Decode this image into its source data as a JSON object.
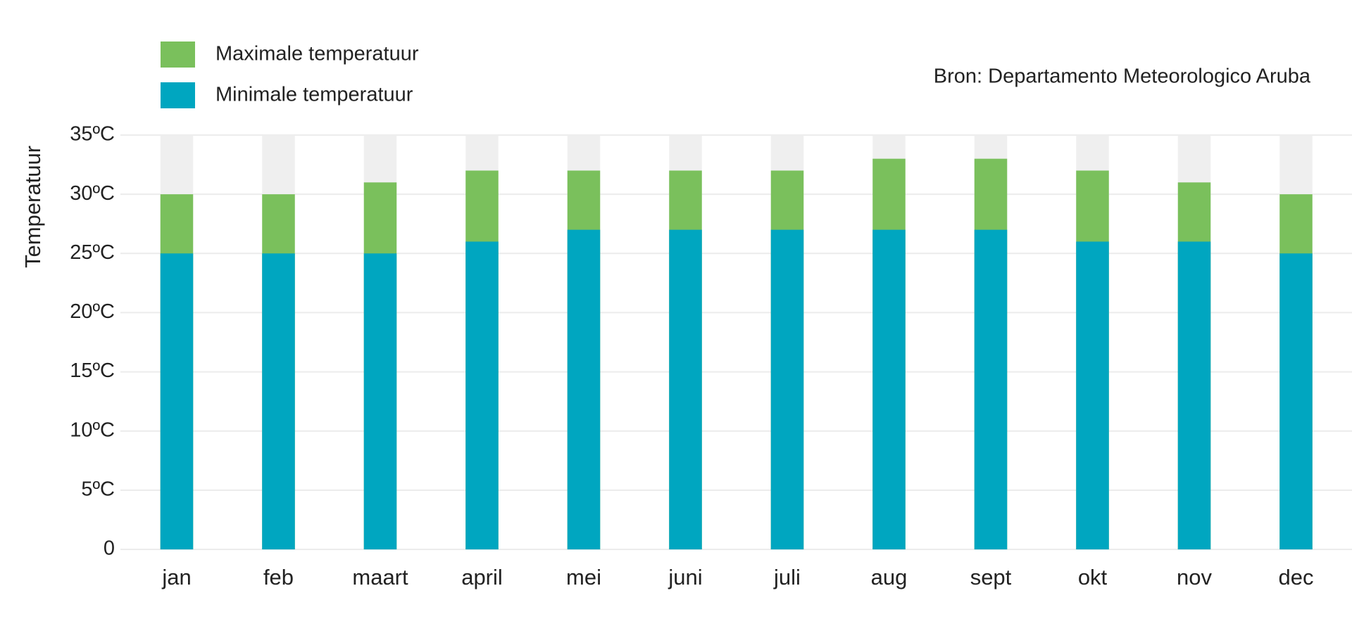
{
  "chart_data": {
    "type": "bar",
    "source": "Bron: Departamento Meteorologico Aruba",
    "y_label": "Temperatuur",
    "categories": [
      "jan",
      "feb",
      "maart",
      "april",
      "mei",
      "juni",
      "juli",
      "aug",
      "sept",
      "okt",
      "nov",
      "dec"
    ],
    "series": [
      {
        "name": "Maximale temperatuur",
        "color": "#7ac05c",
        "values": [
          30,
          30,
          31,
          32,
          32,
          32,
          32,
          33,
          33,
          32,
          31,
          30
        ]
      },
      {
        "name": "Minimale temperatuur",
        "color": "#00a6c0",
        "values": [
          25,
          25,
          25,
          26,
          27,
          27,
          27,
          27,
          27,
          26,
          26,
          25
        ]
      }
    ],
    "ylim": [
      0,
      35
    ],
    "yticks": [
      0,
      {
        "value": 5,
        "label": "5ºC"
      },
      {
        "value": 10,
        "label": "10ºC"
      },
      {
        "value": 15,
        "label": "15ºC"
      },
      {
        "value": 20,
        "label": "20ºC"
      },
      {
        "value": 25,
        "label": "25ºC"
      },
      {
        "value": 30,
        "label": "30ºC"
      },
      {
        "value": 35,
        "label": "35ºC"
      }
    ],
    "grid": true
  }
}
